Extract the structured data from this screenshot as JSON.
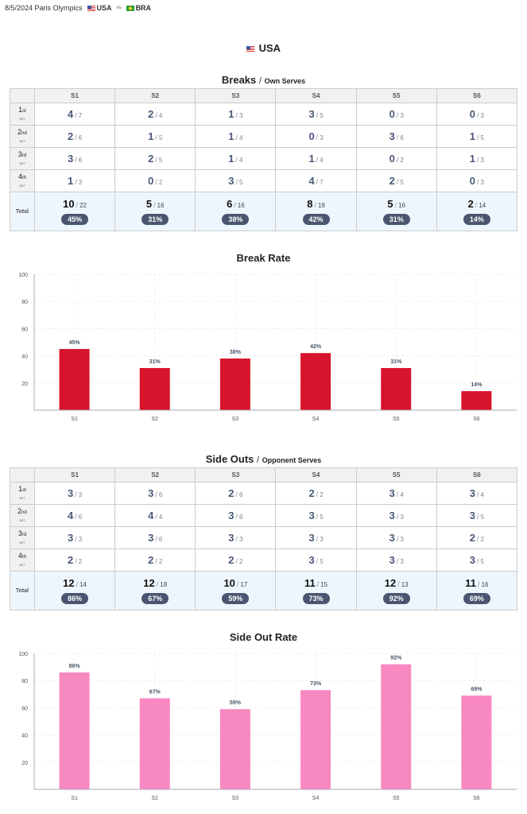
{
  "header": {
    "date_event": "8/5/2024 Paris Olympics",
    "team_a": "USA",
    "vs": "vs",
    "team_b": "BRA",
    "team_a_flag": "us-flag-icon",
    "team_b_flag": "br-flag-icon"
  },
  "team_title": "USA",
  "columns": [
    "S1",
    "S2",
    "S3",
    "S4",
    "S5",
    "S6"
  ],
  "row_labels": [
    {
      "n": "1",
      "suf": "st",
      "set": "SET"
    },
    {
      "n": "2",
      "suf": "nd",
      "set": "SET"
    },
    {
      "n": "3",
      "suf": "rd",
      "set": "SET"
    },
    {
      "n": "4",
      "suf": "th",
      "set": "SET"
    }
  ],
  "total_label": "Total",
  "slash": "/",
  "breaks": {
    "title": "Breaks",
    "subtitle": "Own Serves",
    "rows": [
      [
        [
          4,
          7
        ],
        [
          2,
          4
        ],
        [
          1,
          3
        ],
        [
          3,
          5
        ],
        [
          0,
          3
        ],
        [
          0,
          3
        ]
      ],
      [
        [
          2,
          6
        ],
        [
          1,
          5
        ],
        [
          1,
          4
        ],
        [
          0,
          3
        ],
        [
          3,
          6
        ],
        [
          1,
          5
        ]
      ],
      [
        [
          3,
          6
        ],
        [
          2,
          5
        ],
        [
          1,
          4
        ],
        [
          1,
          4
        ],
        [
          0,
          2
        ],
        [
          1,
          3
        ]
      ],
      [
        [
          1,
          3
        ],
        [
          0,
          2
        ],
        [
          3,
          5
        ],
        [
          4,
          7
        ],
        [
          2,
          5
        ],
        [
          0,
          3
        ]
      ]
    ],
    "totals": [
      [
        10,
        22
      ],
      [
        5,
        16
      ],
      [
        6,
        16
      ],
      [
        8,
        19
      ],
      [
        5,
        16
      ],
      [
        2,
        14
      ]
    ],
    "pct": [
      "45%",
      "31%",
      "38%",
      "42%",
      "31%",
      "14%"
    ]
  },
  "sideouts": {
    "title": "Side Outs",
    "subtitle": "Opponent Serves",
    "rows": [
      [
        [
          3,
          3
        ],
        [
          3,
          6
        ],
        [
          2,
          6
        ],
        [
          2,
          2
        ],
        [
          3,
          4
        ],
        [
          3,
          4
        ]
      ],
      [
        [
          4,
          6
        ],
        [
          4,
          4
        ],
        [
          3,
          6
        ],
        [
          3,
          5
        ],
        [
          3,
          3
        ],
        [
          3,
          5
        ]
      ],
      [
        [
          3,
          3
        ],
        [
          3,
          6
        ],
        [
          3,
          3
        ],
        [
          3,
          3
        ],
        [
          3,
          3
        ],
        [
          2,
          2
        ]
      ],
      [
        [
          2,
          2
        ],
        [
          2,
          2
        ],
        [
          2,
          2
        ],
        [
          3,
          5
        ],
        [
          3,
          3
        ],
        [
          3,
          5
        ]
      ]
    ],
    "totals": [
      [
        12,
        14
      ],
      [
        12,
        18
      ],
      [
        10,
        17
      ],
      [
        11,
        15
      ],
      [
        12,
        13
      ],
      [
        11,
        16
      ]
    ],
    "pct": [
      "86%",
      "67%",
      "59%",
      "73%",
      "92%",
      "69%"
    ]
  },
  "chart_data": [
    {
      "type": "bar",
      "title": "Break Rate",
      "categories": [
        "S1",
        "S2",
        "S3",
        "S4",
        "S5",
        "S6"
      ],
      "values": [
        45,
        31,
        38,
        42,
        31,
        14
      ],
      "labels": [
        "45%",
        "31%",
        "38%",
        "42%",
        "31%",
        "14%"
      ],
      "ylim": [
        0,
        100
      ],
      "yticks": [
        20,
        40,
        60,
        80,
        100
      ],
      "grid": true,
      "color": "#d7142b"
    },
    {
      "type": "bar",
      "title": "Side Out Rate",
      "categories": [
        "S1",
        "S2",
        "S3",
        "S4",
        "S5",
        "S6"
      ],
      "values": [
        86,
        67,
        59,
        73,
        92,
        69
      ],
      "labels": [
        "86%",
        "67%",
        "59%",
        "73%",
        "92%",
        "69%"
      ],
      "ylim": [
        0,
        100
      ],
      "yticks": [
        20,
        40,
        60,
        80,
        100
      ],
      "grid": true,
      "color": "#f888c0"
    }
  ]
}
